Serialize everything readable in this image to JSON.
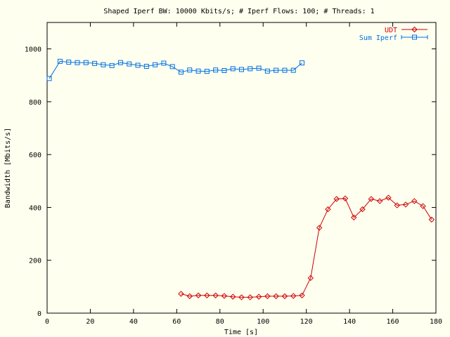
{
  "chart_data": {
    "type": "line",
    "title": "Shaped Iperf BW: 10000 Kbits/s; # Iperf Flows: 100; # Threads: 1",
    "xlabel": "Time [s]",
    "ylabel": "Bandwidth [Mbits/s]",
    "xlim": [
      0,
      180
    ],
    "ylim": [
      0,
      1100
    ],
    "xticks": [
      0,
      20,
      40,
      60,
      80,
      100,
      120,
      140,
      160,
      180
    ],
    "yticks": [
      0,
      200,
      400,
      600,
      800,
      1000
    ],
    "grid": false,
    "legend_position": "top-right",
    "series": [
      {
        "name": "UDT",
        "color": "#d00000",
        "marker": "diamond",
        "x": [
          62,
          66,
          70,
          74,
          78,
          82,
          86,
          90,
          94,
          98,
          102,
          106,
          110,
          114,
          118,
          122,
          126,
          130,
          134,
          138,
          142,
          146,
          150,
          154,
          158,
          162,
          166,
          170,
          174,
          178
        ],
        "y": [
          73,
          64,
          67,
          67,
          67,
          65,
          62,
          60,
          60,
          62,
          64,
          64,
          64,
          65,
          67,
          133,
          323,
          393,
          432,
          434,
          362,
          393,
          432,
          424,
          437,
          408,
          411,
          424,
          405,
          354
        ]
      },
      {
        "name": "Sum Iperf",
        "color": "#0070e0",
        "marker": "square",
        "x": [
          1,
          6,
          10,
          14,
          18,
          22,
          26,
          30,
          34,
          38,
          42,
          46,
          50,
          54,
          58,
          62,
          66,
          70,
          74,
          78,
          82,
          86,
          90,
          94,
          98,
          102,
          106,
          110,
          114,
          118
        ],
        "y": [
          888,
          953,
          950,
          948,
          948,
          945,
          940,
          937,
          948,
          943,
          938,
          934,
          940,
          946,
          933,
          912,
          920,
          916,
          915,
          920,
          918,
          925,
          922,
          925,
          927,
          916,
          919,
          919,
          919,
          947
        ]
      }
    ]
  }
}
